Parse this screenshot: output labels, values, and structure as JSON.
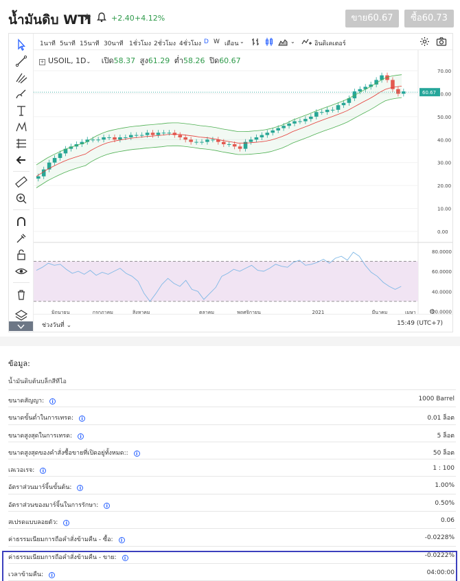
{
  "header": {
    "title": "น้ำมันดิบ WTI",
    "change": "+2.40",
    "change_pct": "+4.12%",
    "sell_label": "ขาย60.67",
    "buy_label": "ซื้อ60.73"
  },
  "toolbar": {
    "timeframes": [
      "1นาที",
      "5นาที",
      "15นาที",
      "30นาที",
      "1ชั่วโมง",
      "2ชั่วโมง",
      "4ชั่วโมง",
      "D",
      "W",
      "เดือน"
    ],
    "active_timeframe": "D",
    "indicators_label": "อินดิเคเตอร์"
  },
  "legend": {
    "symbol": "USOIL, 1D",
    "open_label": "เปิด",
    "open": "58.37",
    "high_label": "สูง",
    "high": "61.29",
    "low_label": "ต่ำ",
    "low": "58.26",
    "close_label": "ปิด",
    "close": "60.67"
  },
  "chart_data": {
    "type": "candlestick",
    "price_axis_ticks": [
      "70.00",
      "60.00",
      "50.00",
      "40.00",
      "30.00",
      "20.00",
      "10.00",
      "0.00"
    ],
    "rsi_axis_ticks": [
      "80.0000",
      "60.0000",
      "40.0000",
      "20.0000"
    ],
    "x_ticks": [
      "มิถุนายน",
      "กรกฎาคม",
      "สิงหาคม",
      "ตุลาคม",
      "พฤศจิกายน",
      "2021",
      "มีนาคม",
      "เมษา"
    ],
    "last_price_label": "60.67",
    "price_ylim": [
      -3,
      73
    ],
    "rsi_ylim": [
      19,
      86
    ],
    "rsi_levels": [
      70,
      30
    ],
    "price_close": [
      24,
      27,
      30,
      32,
      34,
      36,
      37,
      38,
      39,
      40,
      40,
      40,
      41,
      41,
      40,
      41,
      41,
      42,
      42,
      42,
      43,
      42,
      43,
      43,
      43,
      42,
      41,
      40,
      39,
      39,
      39,
      40,
      40,
      39,
      38,
      38,
      37,
      36,
      39,
      40,
      41,
      42,
      43,
      44,
      45,
      46,
      47,
      48,
      48,
      49,
      50,
      52,
      52,
      53,
      53,
      55,
      56,
      58,
      61,
      62,
      63,
      64,
      66,
      68,
      66,
      62,
      60,
      61
    ],
    "rsi": [
      61,
      64,
      68,
      66,
      67,
      62,
      58,
      60,
      57,
      61,
      56,
      59,
      57,
      60,
      63,
      58,
      55,
      50,
      38,
      30,
      38,
      47,
      53,
      48,
      45,
      51,
      42,
      40,
      32,
      38,
      44,
      55,
      58,
      62,
      60,
      63,
      66,
      61,
      60,
      63,
      67,
      65,
      64,
      69,
      71,
      66,
      67,
      69,
      72,
      68,
      73,
      75,
      71,
      79,
      75,
      66,
      59,
      55,
      49,
      45,
      42,
      45
    ]
  },
  "bottom_bar": {
    "range_label": "ช่วงวันที่",
    "clock": "15:49 (UTC+7)"
  },
  "info": {
    "title": "ข้อมูล:",
    "subtitle": "น้ำมันดิบต้นบล็กสีทีไอ",
    "rows": [
      {
        "label": "ขนาดสัญญา:",
        "value": "1000 Barrel"
      },
      {
        "label": "ขนาดขั้นต่ำในการเทรด:",
        "value": "0.01 ล็อต"
      },
      {
        "label": "ขนาดสูงสุดในการเทรด:",
        "value": "5 ล็อต"
      },
      {
        "label": "ขนาดสูงสุดของคำสั่งซื้อขายที่เปิดอยู่ทั้งหมด::",
        "value": "50 ล็อต"
      },
      {
        "label": "เลเวอเรจ:",
        "value": "1 : 100"
      },
      {
        "label": "อัตราส่วนมาร์จิ้นขั้นต้น:",
        "value": "1.00%"
      },
      {
        "label": "อัตราส่วนของมาร์จิ้นในการรักษา:",
        "value": "0.50%"
      },
      {
        "label": "สเปรดแบบลอยตัว:",
        "value": "0.06"
      },
      {
        "label": "ค่าธรรมเนียมการถือคำสั่งข้ามคืน - ซื้อ:",
        "value": "-0.0228%"
      },
      {
        "label": "ค่าธรรมเนียมการถือคำสั่งข้ามคืน - ขาย:",
        "value": "-0.0222%"
      },
      {
        "label": "เวลาข้ามคืน:",
        "value": "04:00:00"
      }
    ]
  },
  "colors": {
    "up": "#26a69a",
    "down": "#ef5350",
    "rsi_line": "#7fb8e6",
    "rsi_band": "#f1e4f3",
    "bb": "#4caf50",
    "ma": "#e53935",
    "accent": "#2962ff"
  }
}
